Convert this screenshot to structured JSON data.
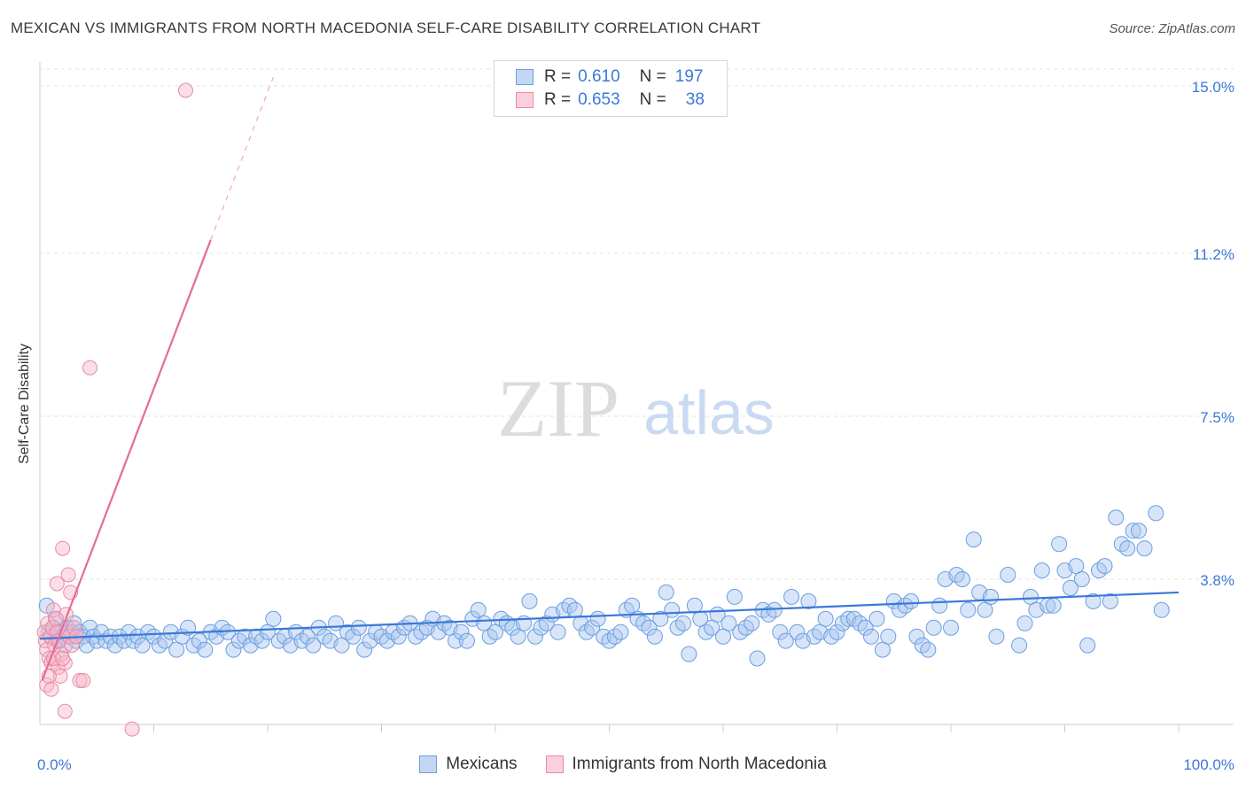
{
  "chart_data": {
    "type": "scatter",
    "title": "MEXICAN VS IMMIGRANTS FROM NORTH MACEDONIA SELF-CARE DISABILITY CORRELATION CHART",
    "source": "Source: ZipAtlas.com",
    "xlabel": "",
    "ylabel": "Self-Care Disability",
    "xlim": [
      0,
      100
    ],
    "ylim": [
      0,
      15.5
    ],
    "x_tick_labels": {
      "left": "0.0%",
      "right": "100.0%"
    },
    "y_ticks": [
      {
        "value": 3.8,
        "label": "3.8%"
      },
      {
        "value": 7.5,
        "label": "7.5%"
      },
      {
        "value": 11.2,
        "label": "11.2%"
      },
      {
        "value": 15.0,
        "label": "15.0%"
      }
    ],
    "watermark": {
      "zip": "ZIP",
      "atlas": "atlas"
    },
    "legend_stats": [
      {
        "r_label": "R =",
        "r_value": "0.610",
        "n_label": "N =",
        "n_value": "197"
      },
      {
        "r_label": "R =",
        "r_value": "0.653",
        "n_label": "N =",
        "n_value": "38"
      }
    ],
    "series": [
      {
        "name": "Mexicans",
        "fill": "#a9c6f0",
        "stroke": "#6b9ee0",
        "line_color": "#3b78d8",
        "trend": {
          "x0": 0,
          "y0": 2.45,
          "x1": 100,
          "y1": 3.5,
          "dashed_to": null
        },
        "points": [
          [
            0.6,
            3.2
          ],
          [
            0.8,
            2.6
          ],
          [
            1.0,
            2.5
          ],
          [
            1.2,
            2.7
          ],
          [
            1.4,
            2.9
          ],
          [
            1.6,
            2.4
          ],
          [
            1.8,
            2.6
          ],
          [
            2.0,
            2.5
          ],
          [
            2.2,
            2.3
          ],
          [
            2.4,
            2.7
          ],
          [
            2.6,
            2.5
          ],
          [
            2.8,
            2.6
          ],
          [
            3.0,
            2.8
          ],
          [
            3.2,
            2.4
          ],
          [
            3.5,
            2.6
          ],
          [
            3.8,
            2.5
          ],
          [
            4.1,
            2.3
          ],
          [
            4.4,
            2.7
          ],
          [
            4.7,
            2.5
          ],
          [
            5.0,
            2.4
          ],
          [
            5.4,
            2.6
          ],
          [
            5.8,
            2.4
          ],
          [
            6.2,
            2.5
          ],
          [
            6.6,
            2.3
          ],
          [
            7.0,
            2.5
          ],
          [
            7.4,
            2.4
          ],
          [
            7.8,
            2.6
          ],
          [
            8.2,
            2.4
          ],
          [
            8.6,
            2.5
          ],
          [
            9.0,
            2.3
          ],
          [
            9.5,
            2.6
          ],
          [
            10.0,
            2.5
          ],
          [
            10.5,
            2.3
          ],
          [
            11.0,
            2.4
          ],
          [
            11.5,
            2.6
          ],
          [
            12.0,
            2.2
          ],
          [
            12.5,
            2.5
          ],
          [
            13.0,
            2.7
          ],
          [
            13.5,
            2.3
          ],
          [
            14.0,
            2.4
          ],
          [
            14.5,
            2.2
          ],
          [
            15.0,
            2.6
          ],
          [
            15.5,
            2.5
          ],
          [
            16.0,
            2.7
          ],
          [
            16.5,
            2.6
          ],
          [
            17.0,
            2.2
          ],
          [
            17.5,
            2.4
          ],
          [
            18.0,
            2.5
          ],
          [
            18.5,
            2.3
          ],
          [
            19.0,
            2.5
          ],
          [
            19.5,
            2.4
          ],
          [
            20.0,
            2.6
          ],
          [
            20.5,
            2.9
          ],
          [
            21.0,
            2.4
          ],
          [
            21.5,
            2.5
          ],
          [
            22.0,
            2.3
          ],
          [
            22.5,
            2.6
          ],
          [
            23.0,
            2.4
          ],
          [
            23.5,
            2.5
          ],
          [
            24.0,
            2.3
          ],
          [
            24.5,
            2.7
          ],
          [
            25.0,
            2.5
          ],
          [
            25.5,
            2.4
          ],
          [
            26.0,
            2.8
          ],
          [
            26.5,
            2.3
          ],
          [
            27.0,
            2.6
          ],
          [
            27.5,
            2.5
          ],
          [
            28.0,
            2.7
          ],
          [
            28.5,
            2.2
          ],
          [
            29.0,
            2.4
          ],
          [
            29.5,
            2.6
          ],
          [
            30.0,
            2.5
          ],
          [
            30.5,
            2.4
          ],
          [
            31.0,
            2.6
          ],
          [
            31.5,
            2.5
          ],
          [
            32.0,
            2.7
          ],
          [
            32.5,
            2.8
          ],
          [
            33.0,
            2.5
          ],
          [
            33.5,
            2.6
          ],
          [
            34.0,
            2.7
          ],
          [
            34.5,
            2.9
          ],
          [
            35.0,
            2.6
          ],
          [
            35.5,
            2.8
          ],
          [
            36.0,
            2.7
          ],
          [
            36.5,
            2.4
          ],
          [
            37.0,
            2.6
          ],
          [
            37.5,
            2.4
          ],
          [
            38.0,
            2.9
          ],
          [
            38.5,
            3.1
          ],
          [
            39.0,
            2.8
          ],
          [
            39.5,
            2.5
          ],
          [
            40.0,
            2.6
          ],
          [
            40.5,
            2.9
          ],
          [
            41.0,
            2.8
          ],
          [
            41.5,
            2.7
          ],
          [
            42.0,
            2.5
          ],
          [
            42.5,
            2.8
          ],
          [
            43.0,
            3.3
          ],
          [
            43.5,
            2.5
          ],
          [
            44.0,
            2.7
          ],
          [
            44.5,
            2.8
          ],
          [
            45.0,
            3.0
          ],
          [
            45.5,
            2.6
          ],
          [
            46.0,
            3.1
          ],
          [
            46.5,
            3.2
          ],
          [
            47.0,
            3.1
          ],
          [
            47.5,
            2.8
          ],
          [
            48.0,
            2.6
          ],
          [
            48.5,
            2.7
          ],
          [
            49.0,
            2.9
          ],
          [
            49.5,
            2.5
          ],
          [
            50.0,
            2.4
          ],
          [
            50.5,
            2.5
          ],
          [
            51.0,
            2.6
          ],
          [
            51.5,
            3.1
          ],
          [
            52.0,
            3.2
          ],
          [
            52.5,
            2.9
          ],
          [
            53.0,
            2.8
          ],
          [
            53.5,
            2.7
          ],
          [
            54.0,
            2.5
          ],
          [
            54.5,
            2.9
          ],
          [
            55.0,
            3.5
          ],
          [
            55.5,
            3.1
          ],
          [
            56.0,
            2.7
          ],
          [
            56.5,
            2.8
          ],
          [
            57.0,
            2.1
          ],
          [
            57.5,
            3.2
          ],
          [
            58.0,
            2.9
          ],
          [
            58.5,
            2.6
          ],
          [
            59.0,
            2.7
          ],
          [
            59.5,
            3.0
          ],
          [
            60.0,
            2.5
          ],
          [
            60.5,
            2.8
          ],
          [
            61.0,
            3.4
          ],
          [
            61.5,
            2.6
          ],
          [
            62.0,
            2.7
          ],
          [
            62.5,
            2.8
          ],
          [
            63.0,
            2.0
          ],
          [
            63.5,
            3.1
          ],
          [
            64.0,
            3.0
          ],
          [
            64.5,
            3.1
          ],
          [
            65.0,
            2.6
          ],
          [
            65.5,
            2.4
          ],
          [
            66.0,
            3.4
          ],
          [
            66.5,
            2.6
          ],
          [
            67.0,
            2.4
          ],
          [
            67.5,
            3.3
          ],
          [
            68.0,
            2.5
          ],
          [
            68.5,
            2.6
          ],
          [
            69.0,
            2.9
          ],
          [
            69.5,
            2.5
          ],
          [
            70.0,
            2.6
          ],
          [
            70.5,
            2.8
          ],
          [
            71.0,
            2.9
          ],
          [
            71.5,
            2.9
          ],
          [
            72.0,
            2.8
          ],
          [
            72.5,
            2.7
          ],
          [
            73.0,
            2.5
          ],
          [
            73.5,
            2.9
          ],
          [
            74.0,
            2.2
          ],
          [
            74.5,
            2.5
          ],
          [
            75.0,
            3.3
          ],
          [
            75.5,
            3.1
          ],
          [
            76.0,
            3.2
          ],
          [
            76.5,
            3.3
          ],
          [
            77.0,
            2.5
          ],
          [
            77.5,
            2.3
          ],
          [
            78.0,
            2.2
          ],
          [
            78.5,
            2.7
          ],
          [
            79.0,
            3.2
          ],
          [
            79.5,
            3.8
          ],
          [
            80.0,
            2.7
          ],
          [
            80.5,
            3.9
          ],
          [
            81.0,
            3.8
          ],
          [
            81.5,
            3.1
          ],
          [
            82.0,
            4.7
          ],
          [
            82.5,
            3.5
          ],
          [
            83.0,
            3.1
          ],
          [
            83.5,
            3.4
          ],
          [
            84.0,
            2.5
          ],
          [
            85.0,
            3.9
          ],
          [
            86.0,
            2.3
          ],
          [
            86.5,
            2.8
          ],
          [
            87.0,
            3.4
          ],
          [
            87.5,
            3.1
          ],
          [
            88.0,
            4.0
          ],
          [
            88.5,
            3.2
          ],
          [
            89.0,
            3.2
          ],
          [
            89.5,
            4.6
          ],
          [
            90.0,
            4.0
          ],
          [
            90.5,
            3.6
          ],
          [
            91.0,
            4.1
          ],
          [
            91.5,
            3.8
          ],
          [
            92.0,
            2.3
          ],
          [
            92.5,
            3.3
          ],
          [
            93.0,
            4.0
          ],
          [
            93.5,
            4.1
          ],
          [
            94.0,
            3.3
          ],
          [
            94.5,
            5.2
          ],
          [
            95.0,
            4.6
          ],
          [
            95.5,
            4.5
          ],
          [
            96.0,
            4.9
          ],
          [
            96.5,
            4.9
          ],
          [
            97.0,
            4.5
          ],
          [
            98.0,
            5.3
          ],
          [
            98.5,
            3.1
          ]
        ]
      },
      {
        "name": "Immigrants from North Macedonia",
        "fill": "#f7b6c8",
        "stroke": "#e88aa5",
        "line_color": "#e56b98",
        "trend": {
          "x0": 0.2,
          "y0": 1.5,
          "x1": 15.0,
          "y1": 11.5,
          "dashed_to": {
            "x": 20.5,
            "y": 15.2
          }
        },
        "points": [
          [
            0.4,
            2.6
          ],
          [
            0.5,
            2.4
          ],
          [
            0.6,
            2.2
          ],
          [
            0.7,
            2.8
          ],
          [
            0.8,
            2.0
          ],
          [
            0.9,
            2.5
          ],
          [
            1.0,
            1.9
          ],
          [
            1.1,
            2.7
          ],
          [
            1.2,
            3.1
          ],
          [
            1.3,
            2.3
          ],
          [
            1.4,
            2.9
          ],
          [
            1.5,
            2.6
          ],
          [
            1.6,
            1.8
          ],
          [
            1.7,
            2.4
          ],
          [
            1.8,
            1.6
          ],
          [
            1.9,
            2.1
          ],
          [
            2.0,
            4.5
          ],
          [
            2.2,
            1.9
          ],
          [
            2.3,
            3.0
          ],
          [
            2.4,
            2.6
          ],
          [
            2.5,
            3.9
          ],
          [
            2.6,
            2.5
          ],
          [
            2.7,
            3.5
          ],
          [
            2.8,
            2.3
          ],
          [
            3.0,
            2.7
          ],
          [
            3.2,
            2.5
          ],
          [
            0.6,
            1.4
          ],
          [
            0.8,
            1.6
          ],
          [
            1.0,
            1.3
          ],
          [
            1.2,
            2.0
          ],
          [
            1.5,
            3.7
          ],
          [
            2.2,
            0.8
          ],
          [
            3.5,
            1.5
          ],
          [
            3.8,
            1.5
          ],
          [
            4.4,
            8.6
          ],
          [
            8.1,
            0.4
          ],
          [
            12.8,
            14.9
          ],
          [
            2.0,
            2.0
          ]
        ]
      }
    ]
  },
  "legend_bottom": [
    "Mexicans",
    "Immigrants from North Macedonia"
  ]
}
